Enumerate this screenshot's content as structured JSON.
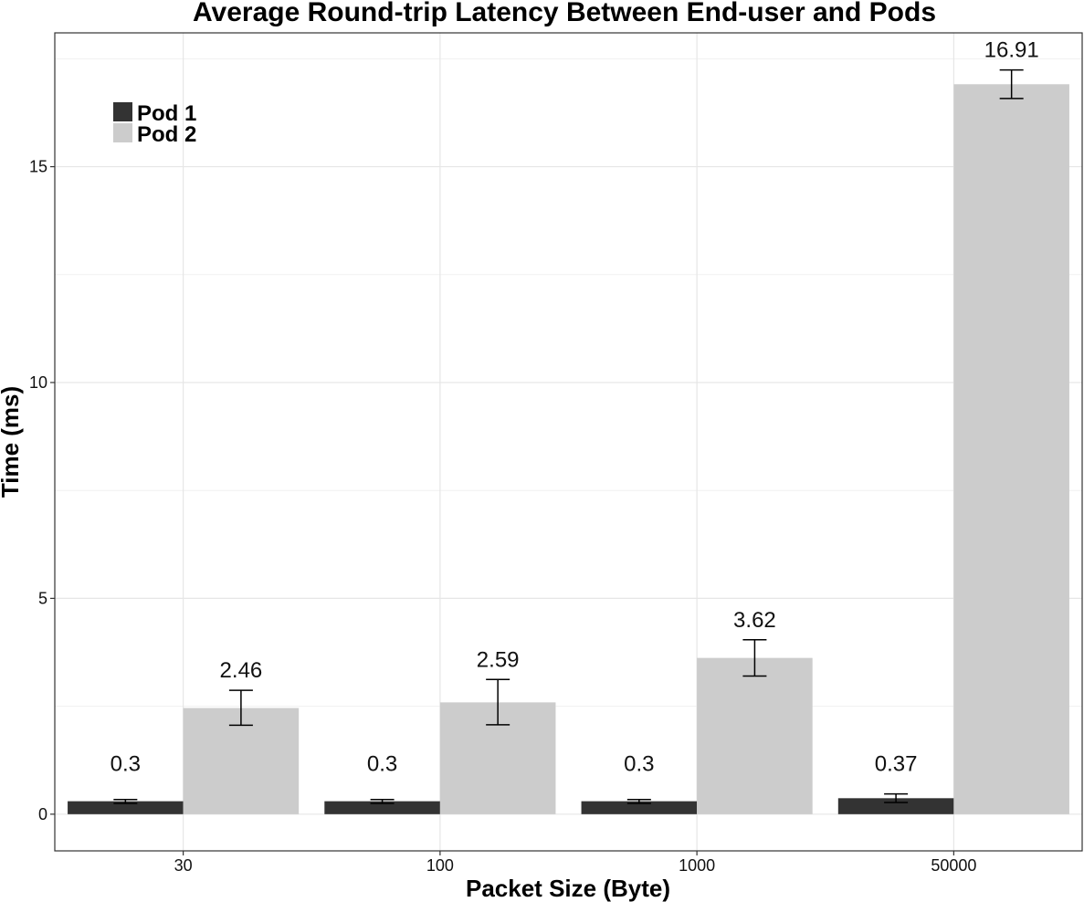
{
  "chart_data": {
    "type": "bar",
    "title": "Average Round-trip Latency Between End-user and Pods",
    "xlabel": "Packet Size (Byte)",
    "ylabel": "Time (ms)",
    "categories": [
      "30",
      "100",
      "1000",
      "50000"
    ],
    "series": [
      {
        "name": "Pod 1",
        "color": "#333333",
        "values": [
          0.3,
          0.3,
          0.3,
          0.37
        ],
        "labels": [
          "0.3",
          "0.3",
          "0.3",
          "0.37"
        ],
        "err_low": [
          0.25,
          0.25,
          0.25,
          0.27
        ],
        "err_high": [
          0.34,
          0.34,
          0.34,
          0.47
        ]
      },
      {
        "name": "Pod 2",
        "color": "#cccccc",
        "values": [
          2.46,
          2.59,
          3.62,
          16.91
        ],
        "labels": [
          "2.46",
          "2.59",
          "3.62",
          "16.91"
        ],
        "err_low": [
          2.06,
          2.07,
          3.2,
          16.58
        ],
        "err_high": [
          2.87,
          3.12,
          4.04,
          17.24
        ]
      }
    ],
    "ylim": [
      -0.85,
      18.1
    ],
    "yticks": [
      0,
      5,
      10,
      15
    ],
    "grid": true,
    "legend_position": "top-left"
  }
}
